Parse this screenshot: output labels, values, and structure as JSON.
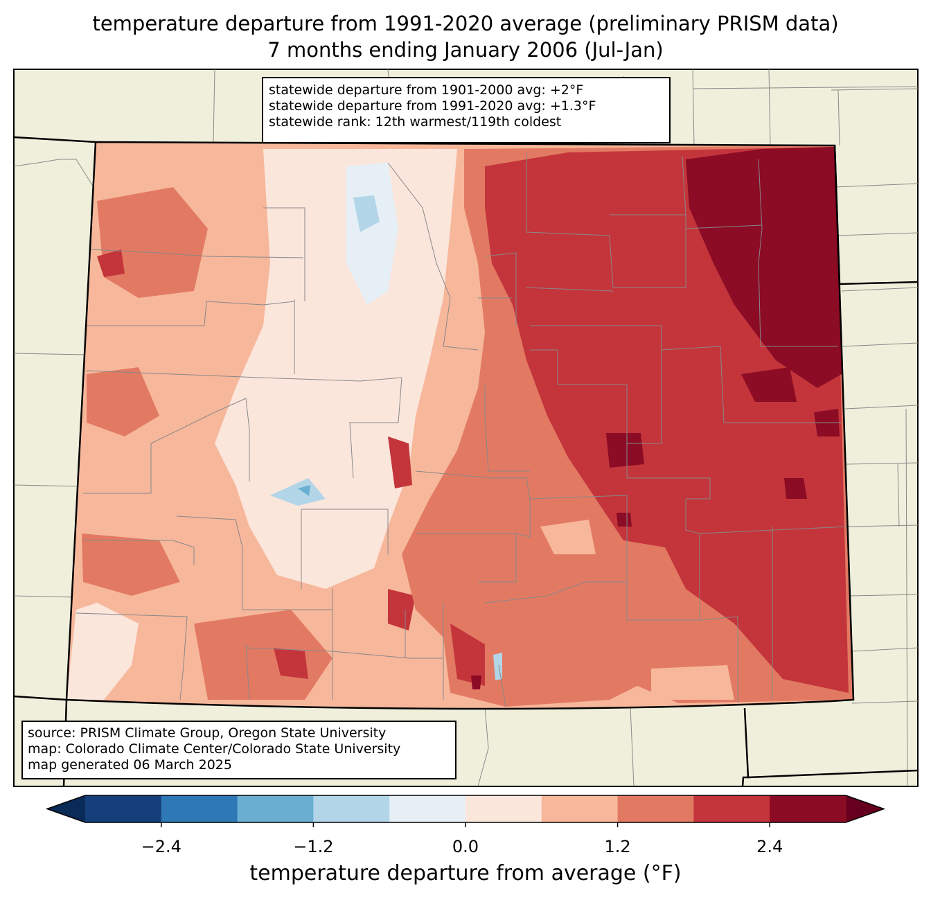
{
  "title": {
    "line1": "temperature departure from 1991-2020 average (preliminary PRISM data)",
    "line2": "7 months ending January 2006 (Jul-Jan)"
  },
  "stats": {
    "line1": "statewide departure from 1901-2000 avg: +2°F",
    "line2": "statewide departure from 1991-2020 avg: +1.3°F",
    "line3": "statewide rank: 12th warmest/119th coldest"
  },
  "credits": {
    "line1": "source: PRISM Climate Group, Oregon State University",
    "line2": "map: Colorado Climate Center/Colorado State University",
    "line3": "map generated 06 March 2025"
  },
  "colorbar": {
    "label": "temperature departure from average (°F)",
    "ticks": [
      "−2.4",
      "−1.2",
      "0.0",
      "1.2",
      "2.4"
    ],
    "tick_values": [
      -2.4,
      -1.2,
      0.0,
      1.2,
      2.4
    ],
    "bounds": [
      -3.0,
      3.0
    ],
    "colors": [
      "#153f7a",
      "#2e78b6",
      "#6aafd2",
      "#b2d5e8",
      "#e6eff6",
      "#fbe6dc",
      "#f7b79b",
      "#e27a63",
      "#c3353b",
      "#8c0b25"
    ],
    "extend_low": "#0a2a57",
    "extend_high": "#67001f"
  },
  "map_colors": {
    "background": "#f0efdc",
    "state_border": "#000000",
    "county_line": "#888888"
  }
}
